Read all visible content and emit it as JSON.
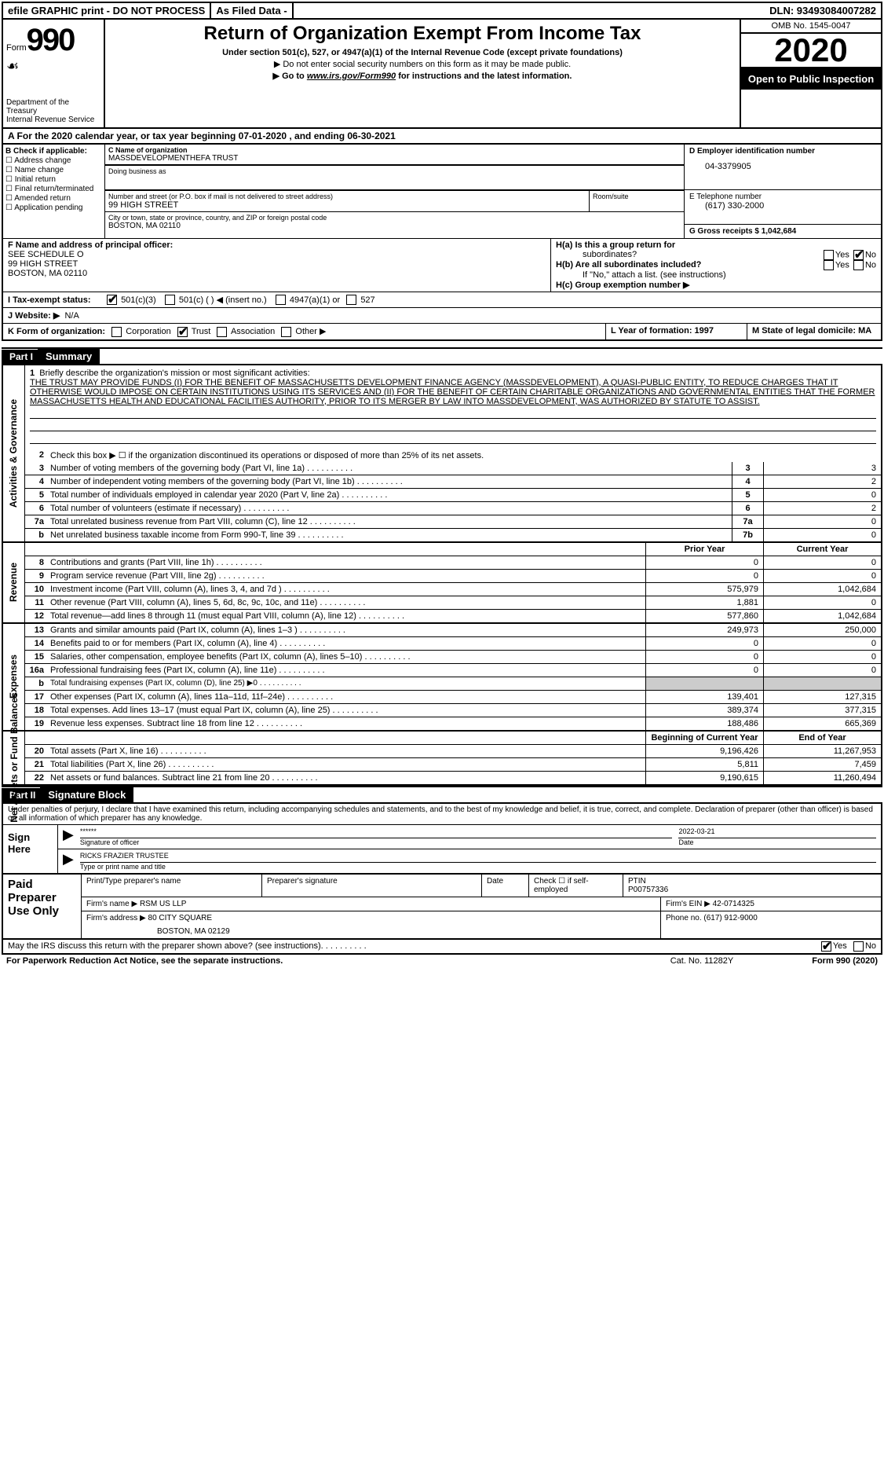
{
  "topbar": {
    "efile": "efile GRAPHIC print - DO NOT PROCESS",
    "asfiled": "As Filed Data -",
    "dln": "DLN: 93493084007282"
  },
  "header": {
    "form_word": "Form",
    "form_number": "990",
    "swoosh": "☙",
    "dept": "Department of the Treasury\nInternal Revenue Service",
    "title": "Return of Organization Exempt From Income Tax",
    "sub1": "Under section 501(c), 527, or 4947(a)(1) of the Internal Revenue Code (except private foundations)",
    "sub2": "▶ Do not enter social security numbers on this form as it may be made public.",
    "sub3_pre": "▶ Go to ",
    "sub3_link": "www.irs.gov/Form990",
    "sub3_post": " for instructions and the latest information.",
    "omb": "OMB No. 1545-0047",
    "year": "2020",
    "open_public": "Open to Public Inspection"
  },
  "row_a": "A  For the 2020 calendar year, or tax year beginning 07-01-2020  , and ending 06-30-2021",
  "section_b": {
    "label": "B Check if applicable:",
    "items": [
      "Address change",
      "Name change",
      "Initial return",
      "Final return/terminated",
      "Amended return",
      "Application pending"
    ]
  },
  "section_c": {
    "name_label": "C Name of organization",
    "name": "MASSDEVELOPMENTHEFA TRUST",
    "dba_label": "Doing business as",
    "dba": "",
    "street_label": "Number and street (or P.O. box if mail is not delivered to street address)",
    "room_label": "Room/suite",
    "street": "99 HIGH STREET",
    "city_label": "City or town, state or province, country, and ZIP or foreign postal code",
    "city": "BOSTON, MA  02110"
  },
  "section_d": {
    "ein_label": "D Employer identification number",
    "ein": "04-3379905",
    "phone_label": "E Telephone number",
    "phone": "(617) 330-2000",
    "gross_label": "G Gross receipts $ 1,042,684"
  },
  "section_f": {
    "label": "F  Name and address of principal officer:",
    "line1": "SEE SCHEDULE O",
    "line2": "99 HIGH STREET",
    "line3": "BOSTON, MA  02110"
  },
  "section_h": {
    "ha": "H(a)  Is this a group return for",
    "ha2": "subordinates?",
    "hb": "H(b)  Are all subordinates included?",
    "hb_note": "If \"No,\" attach a list. (see instructions)",
    "hc": "H(c)  Group exemption number ▶",
    "yes": "Yes",
    "no": "No"
  },
  "row_i": {
    "label": "I  Tax-exempt status:",
    "opt1": "501(c)(3)",
    "opt2": "501(c) (  ) ◀ (insert no.)",
    "opt3": "4947(a)(1) or",
    "opt4": "527"
  },
  "row_j": {
    "label": "J  Website: ▶",
    "value": "N/A"
  },
  "row_k": {
    "label": "K Form of organization:",
    "corp": "Corporation",
    "trust": "Trust",
    "assoc": "Association",
    "other": "Other ▶",
    "l_label": "L Year of formation: 1997",
    "m_label": "M State of legal domicile: MA"
  },
  "part1": {
    "num": "Part I",
    "title": "Summary"
  },
  "mission": {
    "label": "1  Briefly describe the organization's mission or most significant activities:",
    "text": "THE TRUST MAY PROVIDE FUNDS (I) FOR THE BENEFIT OF MASSACHUSETTS DEVELOPMENT FINANCE AGENCY (MASSDEVELOPMENT), A QUASI-PUBLIC ENTITY, TO REDUCE CHARGES THAT IT OTHERWISE WOULD IMPOSE ON CERTAIN INSTITUTIONS USING ITS SERVICES AND (II) FOR THE BENEFIT OF CERTAIN CHARITABLE ORGANIZATIONS AND GOVERNMENTAL ENTITIES THAT THE FORMER MASSACHUSETTS HEALTH AND EDUCATIONAL FACILITIES AUTHORITY, PRIOR TO ITS MERGER BY LAW INTO MASSDEVELOPMENT, WAS AUTHORIZED BY STATUTE TO ASSIST."
  },
  "line2": "Check this box ▶ ☐ if the organization discontinued its operations or disposed of more than 25% of its net assets.",
  "governance_rows": [
    {
      "num": "3",
      "label": "Number of voting members of the governing body (Part VI, line 1a)",
      "box": "3",
      "val": "3"
    },
    {
      "num": "4",
      "label": "Number of independent voting members of the governing body (Part VI, line 1b)",
      "box": "4",
      "val": "2"
    },
    {
      "num": "5",
      "label": "Total number of individuals employed in calendar year 2020 (Part V, line 2a)",
      "box": "5",
      "val": "0"
    },
    {
      "num": "6",
      "label": "Total number of volunteers (estimate if necessary)",
      "box": "6",
      "val": "2"
    },
    {
      "num": "7a",
      "label": "Total unrelated business revenue from Part VIII, column (C), line 12",
      "box": "7a",
      "val": "0"
    },
    {
      "num": "b",
      "label": "Net unrelated business taxable income from Form 990-T, line 39",
      "box": "7b",
      "val": "0"
    }
  ],
  "col_headers": {
    "prior": "Prior Year",
    "current": "Current Year"
  },
  "revenue_rows": [
    {
      "num": "8",
      "label": "Contributions and grants (Part VIII, line 1h)",
      "prior": "0",
      "current": "0"
    },
    {
      "num": "9",
      "label": "Program service revenue (Part VIII, line 2g)",
      "prior": "0",
      "current": "0"
    },
    {
      "num": "10",
      "label": "Investment income (Part VIII, column (A), lines 3, 4, and 7d )",
      "prior": "575,979",
      "current": "1,042,684"
    },
    {
      "num": "11",
      "label": "Other revenue (Part VIII, column (A), lines 5, 6d, 8c, 9c, 10c, and 11e)",
      "prior": "1,881",
      "current": "0"
    },
    {
      "num": "12",
      "label": "Total revenue—add lines 8 through 11 (must equal Part VIII, column (A), line 12)",
      "prior": "577,860",
      "current": "1,042,684"
    }
  ],
  "expense_rows": [
    {
      "num": "13",
      "label": "Grants and similar amounts paid (Part IX, column (A), lines 1–3 )",
      "prior": "249,973",
      "current": "250,000"
    },
    {
      "num": "14",
      "label": "Benefits paid to or for members (Part IX, column (A), line 4)",
      "prior": "0",
      "current": "0"
    },
    {
      "num": "15",
      "label": "Salaries, other compensation, employee benefits (Part IX, column (A), lines 5–10)",
      "prior": "0",
      "current": "0"
    },
    {
      "num": "16a",
      "label": "Professional fundraising fees (Part IX, column (A), line 11e)",
      "prior": "0",
      "current": "0"
    },
    {
      "num": "b",
      "label": "Total fundraising expenses (Part IX, column (D), line 25) ▶0",
      "prior": "",
      "current": ""
    },
    {
      "num": "17",
      "label": "Other expenses (Part IX, column (A), lines 11a–11d, 11f–24e)",
      "prior": "139,401",
      "current": "127,315"
    },
    {
      "num": "18",
      "label": "Total expenses. Add lines 13–17 (must equal Part IX, column (A), line 25)",
      "prior": "389,374",
      "current": "377,315"
    },
    {
      "num": "19",
      "label": "Revenue less expenses. Subtract line 18 from line 12",
      "prior": "188,486",
      "current": "665,369"
    }
  ],
  "col_headers2": {
    "begin": "Beginning of Current Year",
    "end": "End of Year"
  },
  "netassets_rows": [
    {
      "num": "20",
      "label": "Total assets (Part X, line 16)",
      "prior": "9,196,426",
      "current": "11,267,953"
    },
    {
      "num": "21",
      "label": "Total liabilities (Part X, line 26)",
      "prior": "5,811",
      "current": "7,459"
    },
    {
      "num": "22",
      "label": "Net assets or fund balances. Subtract line 21 from line 20",
      "prior": "9,190,615",
      "current": "11,260,494"
    }
  ],
  "side_labels": {
    "gov": "Activities & Governance",
    "rev": "Revenue",
    "exp": "Expenses",
    "net": "Net Assets or Fund Balances"
  },
  "part2": {
    "num": "Part II",
    "title": "Signature Block"
  },
  "declaration": "Under penalties of perjury, I declare that I have examined this return, including accompanying schedules and statements, and to the best of my knowledge and belief, it is true, correct, and complete. Declaration of preparer (other than officer) is based on all information of which preparer has any knowledge.",
  "sign": {
    "label": "Sign Here",
    "stars": "******",
    "sig_label": "Signature of officer",
    "date": "2022-03-21",
    "date_label": "Date",
    "name": "RICKS FRAZIER TRUSTEE",
    "name_label": "Type or print name and title"
  },
  "preparer": {
    "label": "Paid Preparer Use Only",
    "col1": "Print/Type preparer's name",
    "col2": "Preparer's signature",
    "col3": "Date",
    "col4": "Check ☐ if self-employed",
    "col5_label": "PTIN",
    "col5": "P00757336",
    "firm_label": "Firm's name   ▶",
    "firm": "RSM US LLP",
    "ein_label": "Firm's EIN ▶",
    "ein": "42-0714325",
    "addr_label": "Firm's address ▶",
    "addr": "80 CITY SQUARE",
    "addr2": "BOSTON, MA  02129",
    "phone_label": "Phone no.",
    "phone": "(617) 912-9000"
  },
  "discuss": {
    "label": "May the IRS discuss this return with the preparer shown above? (see instructions)",
    "yes": "Yes",
    "no": "No"
  },
  "footer": {
    "pra": "For Paperwork Reduction Act Notice, see the separate instructions.",
    "cat": "Cat. No. 11282Y",
    "form": "Form 990 (2020)"
  }
}
